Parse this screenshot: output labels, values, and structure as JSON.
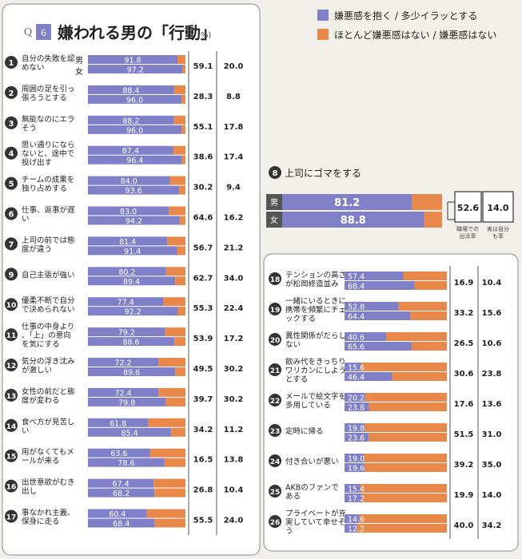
{
  "header": {
    "q_label": "Q",
    "q_num": "6",
    "title": "嫌われる男の「行動」",
    "unit": "(%)"
  },
  "legend": {
    "items": [
      {
        "label": "嫌悪感を抱く / 多少イラッとする",
        "color": "#8080c8"
      },
      {
        "label": "ほとんど嫌悪感はない / 嫌悪感はない",
        "color": "#e8884a"
      }
    ]
  },
  "gender": {
    "male": "男",
    "female": "女"
  },
  "colors": {
    "agree": "#8080c8",
    "disagree": "#e8884a",
    "badge": "#333333",
    "panel": "#ffffff"
  },
  "chart_data": [
    {
      "type": "bar",
      "stacked": true,
      "ylim": [
        0,
        100
      ],
      "items": [
        {
          "rank": "1",
          "label": "自分の失敗を認めない",
          "male": 91.8,
          "female": 97.2,
          "c1": "59.1",
          "c2": "20.0"
        },
        {
          "rank": "2",
          "label": "周囲の足を引っ張ろうとする",
          "male": 88.4,
          "female": 96.0,
          "c1": "28.3",
          "c2": "8.8"
        },
        {
          "rank": "3",
          "label": "無能なのにエラそう",
          "male": 88.2,
          "female": 96.0,
          "c1": "55.1",
          "c2": "17.8"
        },
        {
          "rank": "4",
          "label": "思い通りにならないと、途中で投げ出す",
          "male": 87.4,
          "female": 96.4,
          "c1": "38.6",
          "c2": "17.4"
        },
        {
          "rank": "5",
          "label": "チームの成果を独り占めする",
          "male": 84.0,
          "female": 93.6,
          "c1": "30.2",
          "c2": "9.4"
        },
        {
          "rank": "6",
          "label": "仕事、返事が遅い",
          "male": 83.0,
          "female": 94.2,
          "c1": "64.6",
          "c2": "16.2"
        },
        {
          "rank": "7",
          "label": "上司の前では態度が違う",
          "male": 81.4,
          "female": 91.4,
          "c1": "56.7",
          "c2": "21.2"
        },
        {
          "rank": "9",
          "label": "自己主張が強い",
          "male": 80.2,
          "female": 89.4,
          "c1": "62.7",
          "c2": "34.0"
        },
        {
          "rank": "10",
          "label": "優柔不断で自分で決められない",
          "male": 77.4,
          "female": 92.2,
          "c1": "55.3",
          "c2": "22.4"
        },
        {
          "rank": "11",
          "label": "仕事の中身より、「上」の意向を気にする",
          "male": 79.2,
          "female": 88.6,
          "c1": "53.9",
          "c2": "17.2"
        },
        {
          "rank": "12",
          "label": "気分の浮き沈みが激しい",
          "male": 72.2,
          "female": 89.6,
          "c1": "49.5",
          "c2": "30.2"
        },
        {
          "rank": "13",
          "label": "女性の前だと態度が変わる",
          "male": 72.4,
          "female": 79.8,
          "c1": "39.7",
          "c2": "30.2"
        },
        {
          "rank": "14",
          "label": "食べ方が見苦しい",
          "male": 61.8,
          "female": 85.4,
          "c1": "34.2",
          "c2": "11.2"
        },
        {
          "rank": "15",
          "label": "用がなくてもメールが来る",
          "male": 63.6,
          "female": 78.6,
          "c1": "16.5",
          "c2": "13.8"
        },
        {
          "rank": "16",
          "label": "出世意欲がむき出し",
          "male": 67.4,
          "female": 68.2,
          "c1": "26.8",
          "c2": "10.4"
        },
        {
          "rank": "17",
          "label": "事なかれ主義、保身に走る",
          "male": 60.4,
          "female": 68.4,
          "c1": "55.5",
          "c2": "24.0"
        }
      ]
    },
    {
      "type": "bar",
      "stacked": true,
      "ylim": [
        0,
        100
      ],
      "title": "上司にゴマをする",
      "rank": "8",
      "items": [
        {
          "label": "男",
          "value": 81.2
        },
        {
          "label": "女",
          "value": 88.8
        }
      ],
      "c1": "52.6",
      "c2": "14.0",
      "c1_label": "職場での出没率",
      "c2_label": "実は自分も率"
    },
    {
      "type": "bar",
      "stacked": true,
      "ylim": [
        0,
        100
      ],
      "items": [
        {
          "rank": "18",
          "label": "テンションの高さが松岡修造並み",
          "male": 57.4,
          "female": 68.4,
          "c1": "16.9",
          "c2": "10.4"
        },
        {
          "rank": "19",
          "label": "一緒にいるときに携帯を頻繁にチェックする",
          "male": 52.8,
          "female": 64.4,
          "c1": "33.2",
          "c2": "15.6"
        },
        {
          "rank": "20",
          "label": "異性関係がだらしない",
          "male": 40.6,
          "female": 65.6,
          "c1": "26.5",
          "c2": "10.6"
        },
        {
          "rank": "21",
          "label": "飲み代をきっちりワリカンにしようとする",
          "male": 15.6,
          "female": 46.4,
          "c1": "30.6",
          "c2": "23.8"
        },
        {
          "rank": "22",
          "label": "メールで絵文字を多用している",
          "male": 20.2,
          "female": 23.8,
          "c1": "17.6",
          "c2": "13.6"
        },
        {
          "rank": "23",
          "label": "定時に帰る",
          "male": 19.8,
          "female": 23.6,
          "c1": "51.5",
          "c2": "31.0"
        },
        {
          "rank": "24",
          "label": "付き合いが悪い",
          "male": 19.0,
          "female": 19.6,
          "c1": "39.2",
          "c2": "35.0"
        },
        {
          "rank": "25",
          "label": "AKBのファンである",
          "male": 15.4,
          "female": 17.2,
          "c1": "19.9",
          "c2": "14.0"
        },
        {
          "rank": "26",
          "label": "プライベートが充実していて幸せそう",
          "male": 14.6,
          "female": 12.2,
          "c1": "40.0",
          "c2": "34.2"
        }
      ]
    }
  ]
}
